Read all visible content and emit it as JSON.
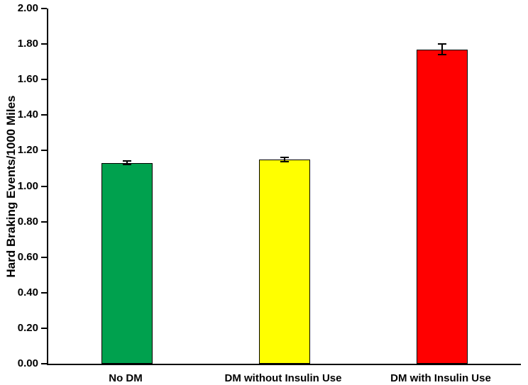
{
  "chart_data": {
    "type": "bar",
    "categories": [
      "No DM",
      "DM without Insulin Use",
      "DM with Insulin Use"
    ],
    "values": [
      1.13,
      1.15,
      1.77
    ],
    "errors": [
      0.01,
      0.012,
      0.03
    ],
    "colors": [
      "#00A14E",
      "#FFFF00",
      "#FF0000"
    ],
    "title": "",
    "xlabel": "",
    "ylabel": "Hard Braking Events/1000 Miles",
    "ylim": [
      0.0,
      2.0
    ],
    "ytick_step": 0.2,
    "ytick_decimals": 2,
    "grid": false,
    "legend": null,
    "bar_border_color": "#000000",
    "axis_color": "#000000"
  }
}
